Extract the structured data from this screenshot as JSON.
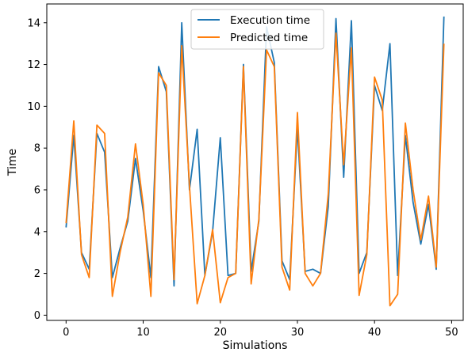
{
  "chart_data": {
    "type": "line",
    "title": "",
    "xlabel": "Simulations",
    "ylabel": "Time",
    "xlim": [
      -2.5,
      51.5
    ],
    "ylim": [
      -0.25,
      14.9
    ],
    "xticks": [
      0,
      10,
      20,
      30,
      40,
      50
    ],
    "yticks": [
      0,
      2,
      4,
      6,
      8,
      10,
      12,
      14
    ],
    "legend_position": "top-center",
    "grid": false,
    "x": [
      0,
      1,
      2,
      3,
      4,
      5,
      6,
      7,
      8,
      9,
      10,
      11,
      12,
      13,
      14,
      15,
      16,
      17,
      18,
      19,
      20,
      21,
      22,
      23,
      24,
      25,
      26,
      27,
      28,
      29,
      30,
      31,
      32,
      33,
      34,
      35,
      36,
      37,
      38,
      39,
      40,
      41,
      42,
      43,
      44,
      45,
      46,
      47,
      48,
      49
    ],
    "series": [
      {
        "name": "Execution time",
        "color": "#1f77b4",
        "values": [
          4.2,
          8.6,
          3.0,
          2.2,
          8.7,
          7.8,
          1.8,
          3.2,
          4.5,
          7.5,
          5.0,
          1.8,
          11.9,
          10.7,
          1.4,
          14.0,
          6.0,
          8.9,
          1.9,
          4.0,
          8.5,
          1.9,
          2.0,
          12.0,
          2.1,
          4.5,
          13.8,
          12.1,
          2.6,
          1.7,
          9.0,
          2.1,
          2.2,
          2.0,
          5.2,
          14.2,
          6.6,
          14.1,
          2.0,
          3.0,
          11.0,
          9.8,
          13.0,
          1.9,
          8.6,
          5.4,
          3.4,
          5.3,
          2.2,
          14.3
        ]
      },
      {
        "name": "Predicted time",
        "color": "#ff7f0e",
        "values": [
          4.4,
          9.3,
          2.9,
          1.8,
          9.1,
          8.7,
          0.9,
          3.0,
          4.7,
          8.2,
          5.3,
          0.9,
          11.6,
          11.0,
          1.7,
          12.9,
          6.2,
          0.55,
          1.9,
          4.1,
          0.6,
          1.8,
          2.0,
          11.9,
          1.5,
          4.6,
          12.7,
          11.9,
          2.3,
          1.2,
          9.7,
          2.0,
          1.4,
          2.0,
          5.8,
          13.5,
          7.2,
          12.8,
          0.95,
          2.9,
          11.4,
          10.3,
          0.45,
          1.0,
          9.2,
          6.0,
          3.6,
          5.7,
          2.3,
          13.0
        ]
      }
    ]
  }
}
